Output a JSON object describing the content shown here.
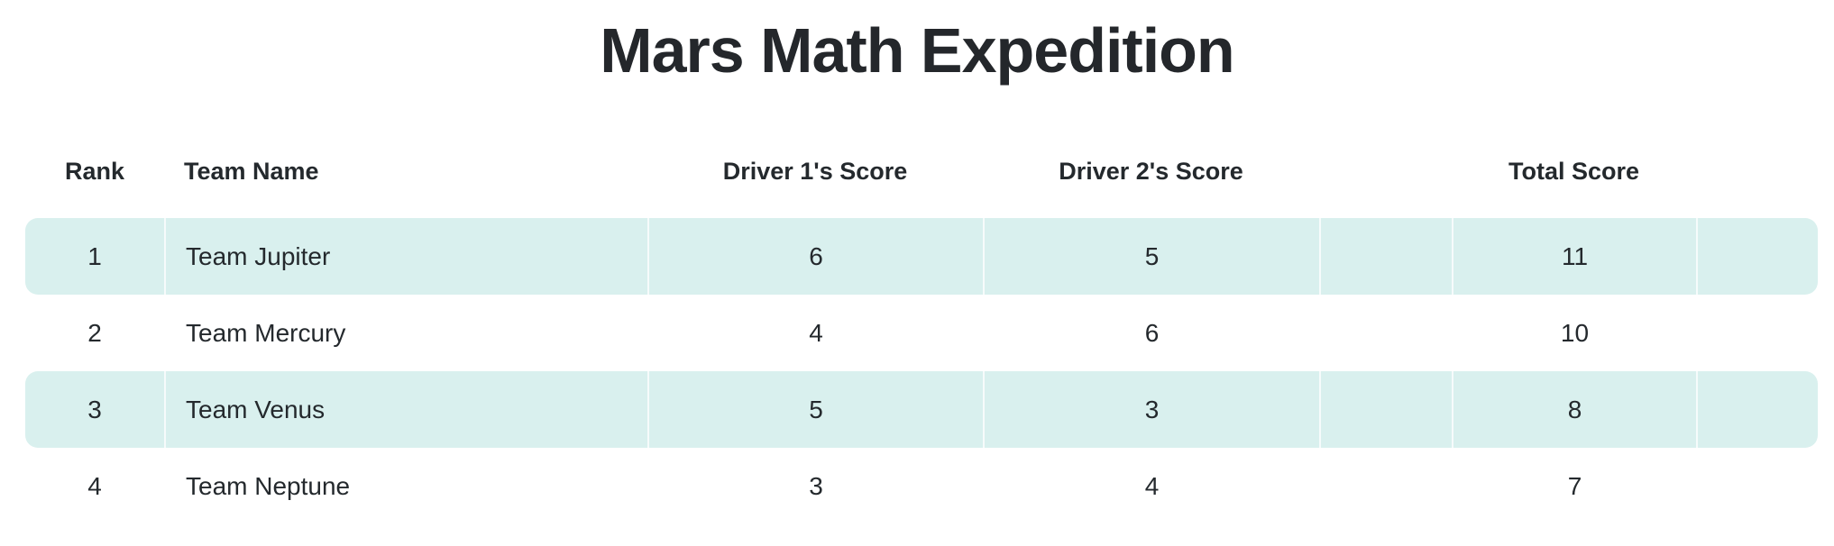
{
  "title": "Mars Math Expedition",
  "table": {
    "headers": [
      "Rank",
      "Team Name",
      "Driver 1's Score",
      "Driver 2's Score",
      "Total Score"
    ],
    "rows": [
      {
        "rank": "1",
        "team": "Team Jupiter",
        "driver1": "6",
        "driver2": "5",
        "total": "11"
      },
      {
        "rank": "2",
        "team": "Team Mercury",
        "driver1": "4",
        "driver2": "6",
        "total": "10"
      },
      {
        "rank": "3",
        "team": "Team Venus",
        "driver1": "5",
        "driver2": "3",
        "total": "8"
      },
      {
        "rank": "4",
        "team": "Team Neptune",
        "driver1": "3",
        "driver2": "4",
        "total": "7"
      }
    ]
  },
  "colors": {
    "page_bg": "#ffffff",
    "highlight_row": "#d9f0ee",
    "row_alt": "#ffffff",
    "cell_divider": "rgba(255,255,255,0.75)",
    "text": "#24292d",
    "title_text": "#24272b"
  }
}
